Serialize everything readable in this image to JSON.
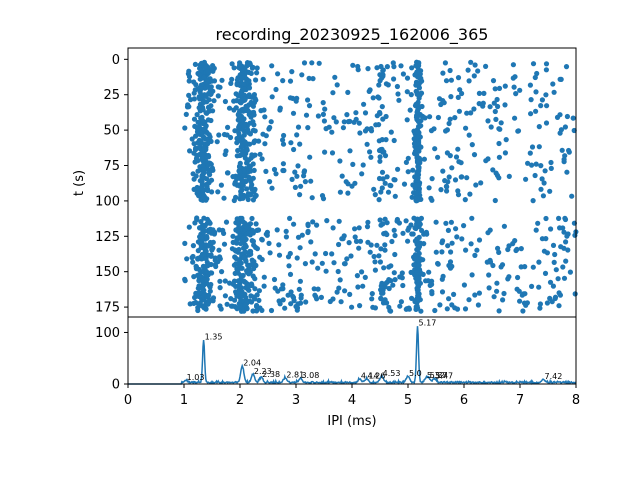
{
  "chart_data": [
    {
      "type": "scatter",
      "title": "recording_20230925_162006_365",
      "xlabel": "",
      "ylabel": "t (s)",
      "xlim": [
        0,
        8
      ],
      "ylim": [
        182,
        -8
      ],
      "y_inverted": true,
      "yticks": [
        0,
        25,
        50,
        75,
        100,
        125,
        150,
        175
      ],
      "color": "#1f77b4",
      "bands_t": [
        [
          2,
          100
        ],
        [
          112,
          178
        ]
      ],
      "clusters_ms": [
        {
          "x": 1.35,
          "spread": 0.08,
          "density": 1.0
        },
        {
          "x": 2.04,
          "spread": 0.08,
          "density": 0.9
        },
        {
          "x": 5.17,
          "spread": 0.03,
          "density": 0.6
        },
        {
          "x": 4.53,
          "spread": 0.05,
          "density": 0.15
        },
        {
          "x": 2.23,
          "spread": 0.05,
          "density": 0.2
        }
      ],
      "background_points_per_band": 420
    },
    {
      "type": "line",
      "title": "",
      "xlabel": "IPI (ms)",
      "ylabel": "",
      "xlim": [
        0,
        8
      ],
      "ylim": [
        0,
        130
      ],
      "xticks": [
        0,
        1,
        2,
        3,
        4,
        5,
        6,
        7,
        8
      ],
      "yticks": [
        0,
        100
      ],
      "color": "#1f77b4",
      "peaks": [
        {
          "x": 1.03,
          "y": 4,
          "label": "1.03"
        },
        {
          "x": 1.35,
          "y": 82,
          "label": "1.35"
        },
        {
          "x": 2.04,
          "y": 32,
          "label": "2.04"
        },
        {
          "x": 2.23,
          "y": 16,
          "label": "2.23"
        },
        {
          "x": 2.38,
          "y": 10,
          "label": "2.38"
        },
        {
          "x": 2.81,
          "y": 9,
          "label": "2.81"
        },
        {
          "x": 3.08,
          "y": 8,
          "label": "3.08"
        },
        {
          "x": 4.14,
          "y": 7,
          "label": "4.14"
        },
        {
          "x": 4.26,
          "y": 7,
          "label": "4.26"
        },
        {
          "x": 4.53,
          "y": 12,
          "label": "4.53"
        },
        {
          "x": 5.0,
          "y": 12,
          "label": "5.0"
        },
        {
          "x": 5.17,
          "y": 110,
          "label": "5.17"
        },
        {
          "x": 5.32,
          "y": 8,
          "label": "5.32"
        },
        {
          "x": 5.37,
          "y": 8,
          "label": "5.37"
        },
        {
          "x": 5.47,
          "y": 7,
          "label": "5.47"
        },
        {
          "x": 7.42,
          "y": 6,
          "label": "7.42"
        }
      ],
      "baseline": 2
    }
  ]
}
